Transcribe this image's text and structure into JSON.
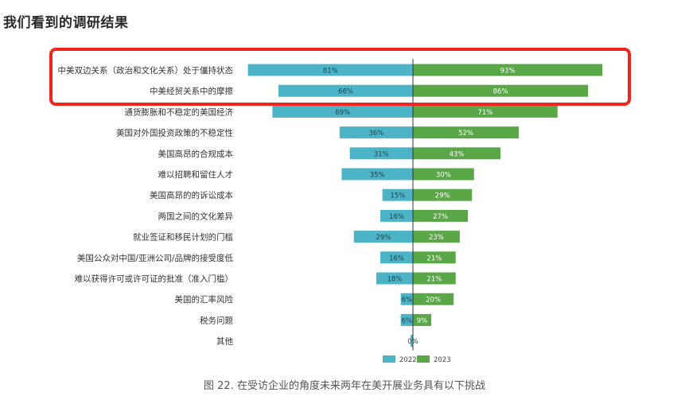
{
  "page": {
    "title": "我们看到的调研结果",
    "caption": "图 22. 在受访企业的角度未来两年在美开展业务具有以下挑战"
  },
  "colors": {
    "series_2022": "#4db4c8",
    "series_2023": "#5aa748",
    "highlight": "#f0241c",
    "center_line": "#333333"
  },
  "chart_data": {
    "type": "bar",
    "orientation": "horizontal-diverging",
    "categories": [
      "中美双边关系（政治和文化关系）处于僵持状态",
      "中美经贸关系中的摩擦",
      "通货膨胀和不稳定的美国经济",
      "美国对外国投资政策的不稳定性",
      "美国高昂的合规成本",
      "难以招聘和留住人才",
      "美国高昂的的诉讼成本",
      "两国之间的文化差异",
      "就业签证和移民计划的门槛",
      "美国公众对中国/亚洲公司/品牌的接受度低",
      "难以获得许可或许可证的批准（准入门槛）",
      "美国的汇率风险",
      "税务问题",
      "其他"
    ],
    "series": [
      {
        "name": "2022",
        "values": [
          81,
          66,
          69,
          36,
          31,
          35,
          15,
          16,
          29,
          16,
          18,
          6,
          6,
          0
        ],
        "labels": [
          "81%",
          "66%",
          "69%",
          "36%",
          "31%",
          "35%",
          "15%",
          "16%",
          "29%",
          "16%",
          "18%",
          "6%",
          "6%",
          "0%"
        ]
      },
      {
        "name": "2023",
        "values": [
          93,
          86,
          71,
          52,
          43,
          30,
          29,
          27,
          23,
          21,
          21,
          20,
          9,
          0
        ],
        "labels": [
          "93%",
          "86%",
          "71%",
          "52%",
          "43%",
          "30%",
          "29%",
          "27%",
          "23%",
          "21%",
          "21%",
          "20%",
          "9%",
          ""
        ]
      }
    ],
    "highlighted_categories": [
      0,
      1
    ],
    "legend_position": "bottom-center",
    "grid": false
  }
}
